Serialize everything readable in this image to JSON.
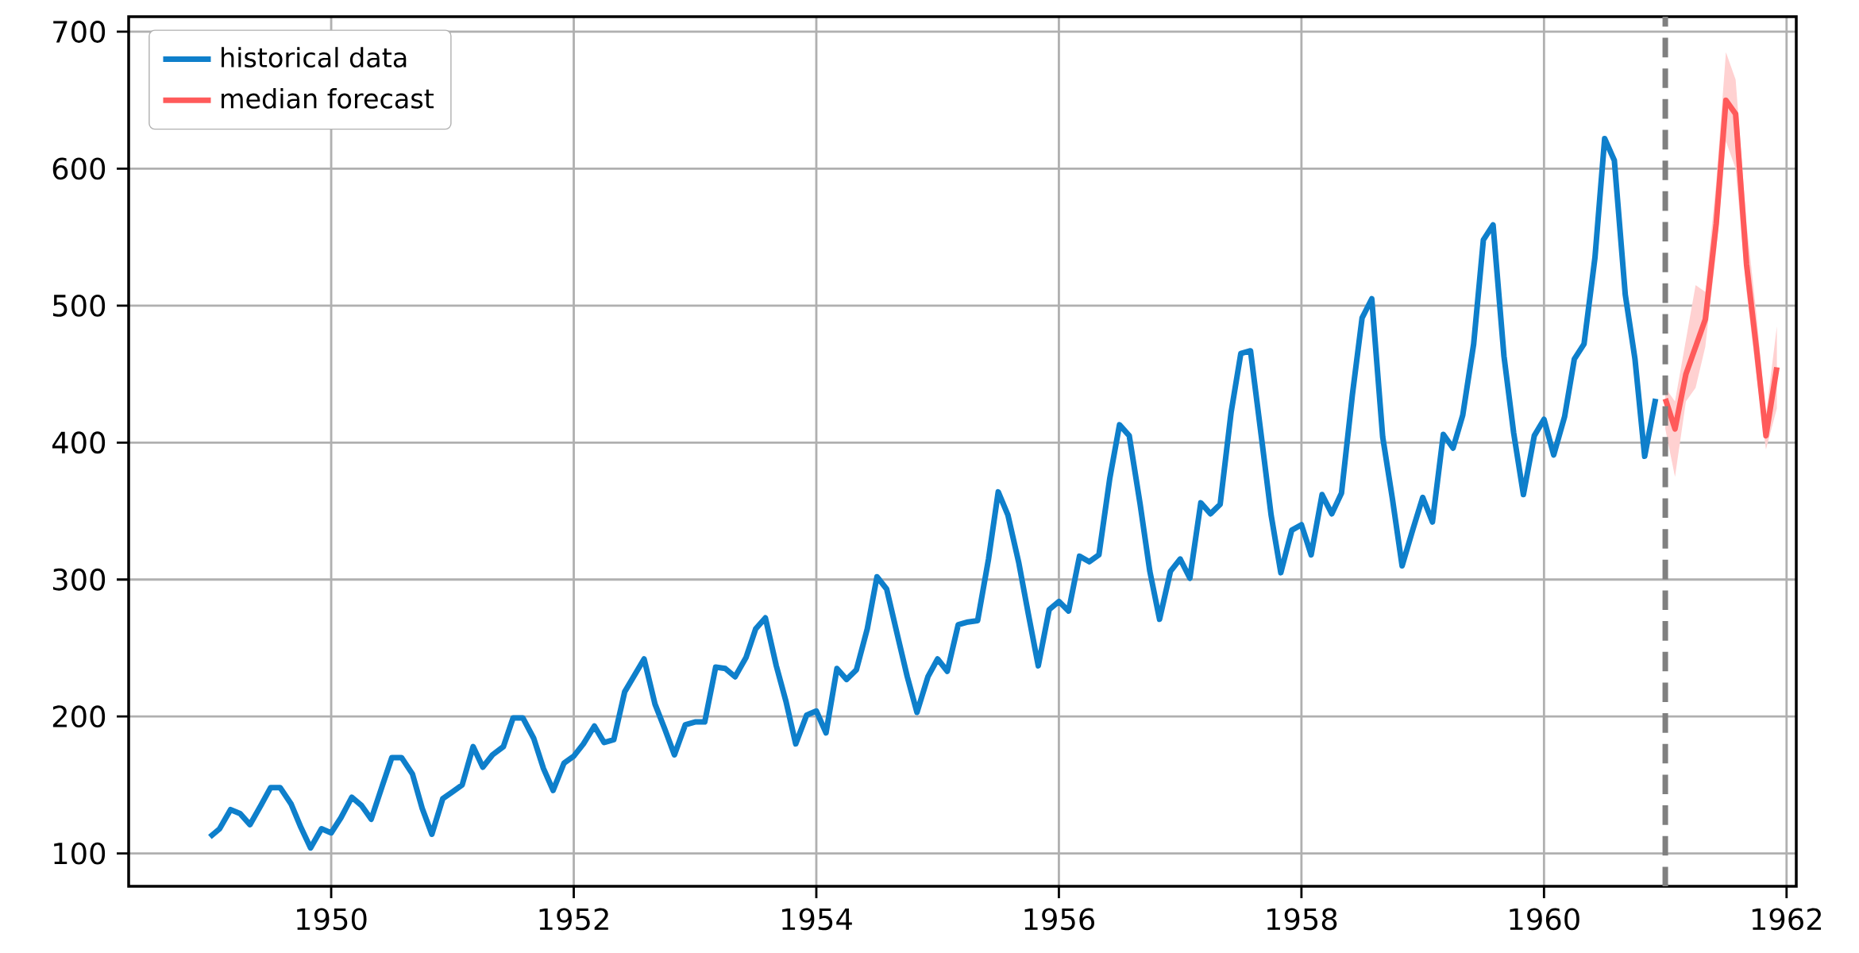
{
  "chart_data": {
    "type": "line",
    "x": [
      "1949-01",
      "1949-02",
      "1949-03",
      "1949-04",
      "1949-05",
      "1949-06",
      "1949-07",
      "1949-08",
      "1949-09",
      "1949-10",
      "1949-11",
      "1949-12",
      "1950-01",
      "1950-02",
      "1950-03",
      "1950-04",
      "1950-05",
      "1950-06",
      "1950-07",
      "1950-08",
      "1950-09",
      "1950-10",
      "1950-11",
      "1950-12",
      "1951-01",
      "1951-02",
      "1951-03",
      "1951-04",
      "1951-05",
      "1951-06",
      "1951-07",
      "1951-08",
      "1951-09",
      "1951-10",
      "1951-11",
      "1951-12",
      "1952-01",
      "1952-02",
      "1952-03",
      "1952-04",
      "1952-05",
      "1952-06",
      "1952-07",
      "1952-08",
      "1952-09",
      "1952-10",
      "1952-11",
      "1952-12",
      "1953-01",
      "1953-02",
      "1953-03",
      "1953-04",
      "1953-05",
      "1953-06",
      "1953-07",
      "1953-08",
      "1953-09",
      "1953-10",
      "1953-11",
      "1953-12",
      "1954-01",
      "1954-02",
      "1954-03",
      "1954-04",
      "1954-05",
      "1954-06",
      "1954-07",
      "1954-08",
      "1954-09",
      "1954-10",
      "1954-11",
      "1954-12",
      "1955-01",
      "1955-02",
      "1955-03",
      "1955-04",
      "1955-05",
      "1955-06",
      "1955-07",
      "1955-08",
      "1955-09",
      "1955-10",
      "1955-11",
      "1955-12",
      "1956-01",
      "1956-02",
      "1956-03",
      "1956-04",
      "1956-05",
      "1956-06",
      "1956-07",
      "1956-08",
      "1956-09",
      "1956-10",
      "1956-11",
      "1956-12",
      "1957-01",
      "1957-02",
      "1957-03",
      "1957-04",
      "1957-05",
      "1957-06",
      "1957-07",
      "1957-08",
      "1957-09",
      "1957-10",
      "1957-11",
      "1957-12",
      "1958-01",
      "1958-02",
      "1958-03",
      "1958-04",
      "1958-05",
      "1958-06",
      "1958-07",
      "1958-08",
      "1958-09",
      "1958-10",
      "1958-11",
      "1958-12",
      "1959-01",
      "1959-02",
      "1959-03",
      "1959-04",
      "1959-05",
      "1959-06",
      "1959-07",
      "1959-08",
      "1959-09",
      "1959-10",
      "1959-11",
      "1959-12",
      "1960-01",
      "1960-02",
      "1960-03",
      "1960-04",
      "1960-05",
      "1960-06",
      "1960-07",
      "1960-08",
      "1960-09",
      "1960-10",
      "1960-11",
      "1960-12"
    ],
    "series": [
      {
        "name": "historical data",
        "color": "#0e7fcb",
        "values": [
          112,
          118,
          132,
          129,
          121,
          135,
          148,
          148,
          136,
          119,
          104,
          118,
          115,
          126,
          141,
          135,
          125,
          149,
          170,
          170,
          158,
          133,
          114,
          140,
          145,
          150,
          178,
          163,
          172,
          178,
          199,
          199,
          184,
          162,
          146,
          166,
          171,
          180,
          193,
          181,
          183,
          218,
          230,
          242,
          209,
          191,
          172,
          194,
          196,
          196,
          236,
          235,
          229,
          243,
          264,
          272,
          237,
          211,
          180,
          201,
          204,
          188,
          235,
          227,
          234,
          264,
          302,
          293,
          259,
          229,
          203,
          229,
          242,
          233,
          267,
          269,
          270,
          315,
          364,
          347,
          312,
          274,
          237,
          278,
          284,
          277,
          317,
          313,
          318,
          374,
          413,
          405,
          355,
          306,
          271,
          306,
          315,
          301,
          356,
          348,
          355,
          422,
          465,
          467,
          404,
          347,
          305,
          336,
          340,
          318,
          362,
          348,
          363,
          435,
          491,
          505,
          404,
          359,
          310,
          337,
          360,
          342,
          406,
          396,
          420,
          472,
          548,
          559,
          463,
          407,
          362,
          405,
          417,
          391,
          419,
          461,
          472,
          535,
          622,
          606,
          508,
          461,
          390,
          432
        ]
      },
      {
        "name": "median forecast",
        "color": "#ff5a5a",
        "x": [
          "1961-01",
          "1961-02",
          "1961-03",
          "1961-04",
          "1961-05",
          "1961-06",
          "1961-07",
          "1961-08",
          "1961-09",
          "1961-10",
          "1961-11",
          "1961-12"
        ],
        "values": [
          432,
          410,
          450,
          470,
          490,
          560,
          650,
          640,
          530,
          470,
          405,
          455
        ],
        "lower": [
          410,
          375,
          430,
          440,
          470,
          540,
          620,
          600,
          510,
          450,
          395,
          425
        ],
        "upper": [
          440,
          430,
          475,
          515,
          510,
          590,
          685,
          665,
          560,
          495,
          420,
          485
        ]
      }
    ],
    "xlim": [
      "1948-05",
      "1962-02"
    ],
    "xticks": [
      {
        "value": "1950",
        "label": "1950"
      },
      {
        "value": "1952",
        "label": "1952"
      },
      {
        "value": "1954",
        "label": "1954"
      },
      {
        "value": "1956",
        "label": "1956"
      },
      {
        "value": "1958",
        "label": "1958"
      },
      {
        "value": "1960",
        "label": "1960"
      },
      {
        "value": "1962",
        "label": "1962"
      }
    ],
    "ylim": [
      76,
      711
    ],
    "yticks": [
      100,
      200,
      300,
      400,
      500,
      600,
      700
    ],
    "ref_lines": [
      {
        "axis": "x",
        "value": "1961-01",
        "color": "#808080",
        "line_style": "dashed"
      }
    ],
    "grid": true,
    "legend": "top left"
  }
}
